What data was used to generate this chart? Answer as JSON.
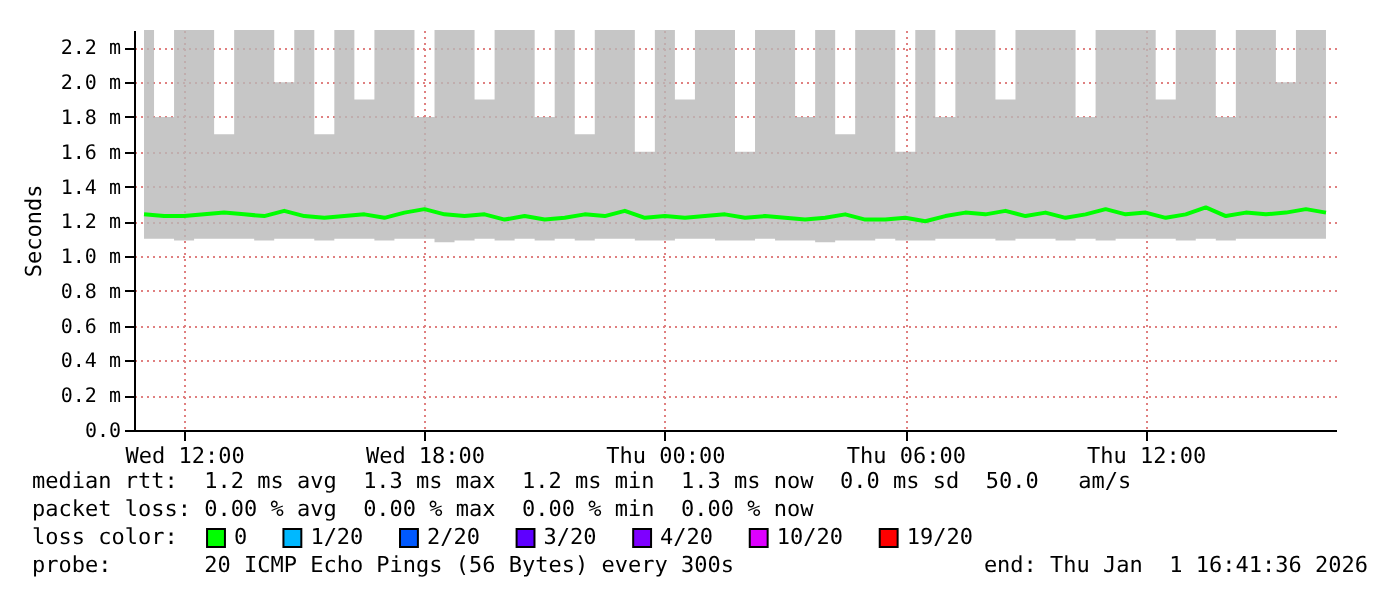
{
  "chart_data": {
    "type": "line",
    "ylabel": "Seconds",
    "x": [
      "2025-12-31T11:00",
      "2025-12-31T11:30",
      "2025-12-31T12:00",
      "2025-12-31T12:30",
      "2025-12-31T13:00",
      "2025-12-31T13:30",
      "2025-12-31T14:00",
      "2025-12-31T14:30",
      "2025-12-31T15:00",
      "2025-12-31T15:30",
      "2025-12-31T16:00",
      "2025-12-31T16:30",
      "2025-12-31T17:00",
      "2025-12-31T17:30",
      "2025-12-31T18:00",
      "2025-12-31T18:30",
      "2025-12-31T19:00",
      "2025-12-31T19:30",
      "2025-12-31T20:00",
      "2025-12-31T20:30",
      "2025-12-31T21:00",
      "2025-12-31T21:30",
      "2025-12-31T22:00",
      "2025-12-31T22:30",
      "2025-12-31T23:00",
      "2025-12-31T23:30",
      "2026-01-01T00:00",
      "2026-01-01T00:30",
      "2026-01-01T01:00",
      "2026-01-01T01:30",
      "2026-01-01T02:00",
      "2026-01-01T02:30",
      "2026-01-01T03:00",
      "2026-01-01T03:30",
      "2026-01-01T04:00",
      "2026-01-01T04:30",
      "2026-01-01T05:00",
      "2026-01-01T05:30",
      "2026-01-01T06:00",
      "2026-01-01T06:30",
      "2026-01-01T07:00",
      "2026-01-01T07:30",
      "2026-01-01T08:00",
      "2026-01-01T08:30",
      "2026-01-01T09:00",
      "2026-01-01T09:30",
      "2026-01-01T10:00",
      "2026-01-01T10:30",
      "2026-01-01T11:00",
      "2026-01-01T11:30",
      "2026-01-01T12:00",
      "2026-01-01T12:30",
      "2026-01-01T13:00",
      "2026-01-01T13:30",
      "2026-01-01T14:00",
      "2026-01-01T14:30",
      "2026-01-01T15:00",
      "2026-01-01T15:30",
      "2026-01-01T16:00",
      "2026-01-01T16:30"
    ],
    "series": [
      {
        "name": "0",
        "color": "#00ff00",
        "values": [
          1.24,
          1.23,
          1.23,
          1.24,
          1.25,
          1.24,
          1.23,
          1.26,
          1.23,
          1.22,
          1.23,
          1.24,
          1.22,
          1.25,
          1.27,
          1.24,
          1.23,
          1.24,
          1.21,
          1.23,
          1.21,
          1.22,
          1.24,
          1.23,
          1.26,
          1.22,
          1.23,
          1.22,
          1.23,
          1.24,
          1.22,
          1.23,
          1.22,
          1.21,
          1.22,
          1.24,
          1.21,
          1.21,
          1.22,
          1.2,
          1.23,
          1.25,
          1.24,
          1.26,
          1.23,
          1.25,
          1.22,
          1.24,
          1.27,
          1.24,
          1.25,
          1.22,
          1.24,
          1.28,
          1.23,
          1.25,
          1.24,
          1.25,
          1.27,
          1.25
        ],
        "lower": [
          1.1,
          1.1,
          1.09,
          1.1,
          1.1,
          1.1,
          1.09,
          1.1,
          1.1,
          1.09,
          1.1,
          1.1,
          1.09,
          1.1,
          1.1,
          1.08,
          1.09,
          1.1,
          1.09,
          1.1,
          1.09,
          1.1,
          1.09,
          1.1,
          1.1,
          1.09,
          1.09,
          1.1,
          1.1,
          1.09,
          1.09,
          1.1,
          1.09,
          1.09,
          1.08,
          1.09,
          1.09,
          1.1,
          1.09,
          1.09,
          1.1,
          1.1,
          1.1,
          1.09,
          1.1,
          1.1,
          1.09,
          1.1,
          1.09,
          1.1,
          1.1,
          1.1,
          1.09,
          1.1,
          1.09,
          1.1,
          1.1,
          1.1,
          1.1,
          1.1
        ],
        "upper": [
          2.3,
          1.8,
          2.3,
          2.3,
          1.7,
          2.3,
          2.3,
          2.0,
          2.3,
          1.7,
          2.3,
          1.9,
          2.3,
          2.3,
          1.8,
          2.3,
          2.3,
          1.9,
          2.3,
          2.3,
          1.8,
          2.3,
          1.7,
          2.3,
          2.3,
          1.6,
          2.3,
          1.9,
          2.3,
          2.3,
          1.6,
          2.3,
          2.3,
          1.8,
          2.3,
          1.7,
          2.3,
          2.3,
          1.6,
          2.3,
          1.8,
          2.3,
          2.3,
          1.9,
          2.3,
          2.3,
          2.3,
          1.8,
          2.3,
          2.3,
          2.3,
          1.9,
          2.3,
          2.3,
          1.8,
          2.3,
          2.3,
          2.0,
          2.3,
          2.3
        ]
      },
      {
        "name": "1/20",
        "color": "#00b8ff",
        "values": [
          null,
          null,
          null,
          null,
          null,
          null,
          null,
          null,
          null,
          null,
          null,
          null,
          null,
          null,
          null,
          null,
          null,
          null,
          null,
          null,
          null,
          null,
          null,
          null,
          null,
          null,
          null,
          null,
          null,
          null,
          null,
          null,
          null,
          null,
          null,
          null,
          null,
          null,
          null,
          null,
          null,
          null,
          null,
          null,
          null,
          null,
          null,
          null,
          null,
          null,
          null,
          null,
          null,
          null,
          null,
          null,
          null,
          null,
          null,
          null
        ]
      },
      {
        "name": "2/20",
        "color": "#0059ff",
        "values": [
          null,
          null,
          null,
          null,
          null,
          null,
          null,
          null,
          null,
          null,
          null,
          null,
          null,
          null,
          null,
          null,
          null,
          null,
          null,
          null,
          null,
          null,
          null,
          null,
          null,
          null,
          null,
          null,
          null,
          null,
          null,
          null,
          null,
          null,
          null,
          null,
          null,
          null,
          null,
          null,
          null,
          null,
          null,
          null,
          null,
          null,
          null,
          null,
          null,
          null,
          null,
          null,
          null,
          null,
          null,
          null,
          null,
          null,
          null,
          null
        ]
      },
      {
        "name": "3/20",
        "color": "#5e00ff",
        "values": [
          null,
          null,
          null,
          null,
          null,
          null,
          null,
          null,
          null,
          null,
          null,
          null,
          null,
          null,
          null,
          null,
          null,
          null,
          null,
          null,
          null,
          null,
          null,
          null,
          null,
          null,
          null,
          null,
          null,
          null,
          null,
          null,
          null,
          null,
          null,
          null,
          null,
          null,
          null,
          null,
          null,
          null,
          null,
          null,
          null,
          null,
          null,
          null,
          null,
          null,
          null,
          null,
          null,
          null,
          null,
          null,
          null,
          null,
          null,
          null
        ]
      },
      {
        "name": "4/20",
        "color": "#7e00ff",
        "values": [
          null,
          null,
          null,
          null,
          null,
          null,
          null,
          null,
          null,
          null,
          null,
          null,
          null,
          null,
          null,
          null,
          null,
          null,
          null,
          null,
          null,
          null,
          null,
          null,
          null,
          null,
          null,
          null,
          null,
          null,
          null,
          null,
          null,
          null,
          null,
          null,
          null,
          null,
          null,
          null,
          null,
          null,
          null,
          null,
          null,
          null,
          null,
          null,
          null,
          null,
          null,
          null,
          null,
          null,
          null,
          null,
          null,
          null,
          null,
          null
        ]
      },
      {
        "name": "10/20",
        "color": "#dd00ff",
        "values": [
          null,
          null,
          null,
          null,
          null,
          null,
          null,
          null,
          null,
          null,
          null,
          null,
          null,
          null,
          null,
          null,
          null,
          null,
          null,
          null,
          null,
          null,
          null,
          null,
          null,
          null,
          null,
          null,
          null,
          null,
          null,
          null,
          null,
          null,
          null,
          null,
          null,
          null,
          null,
          null,
          null,
          null,
          null,
          null,
          null,
          null,
          null,
          null,
          null,
          null,
          null,
          null,
          null,
          null,
          null,
          null,
          null,
          null,
          null,
          null
        ]
      },
      {
        "name": "19/20",
        "color": "#ff0000",
        "values": [
          null,
          null,
          null,
          null,
          null,
          null,
          null,
          null,
          null,
          null,
          null,
          null,
          null,
          null,
          null,
          null,
          null,
          null,
          null,
          null,
          null,
          null,
          null,
          null,
          null,
          null,
          null,
          null,
          null,
          null,
          null,
          null,
          null,
          null,
          null,
          null,
          null,
          null,
          null,
          null,
          null,
          null,
          null,
          null,
          null,
          null,
          null,
          null,
          null,
          null,
          null,
          null,
          null,
          null,
          null,
          null,
          null,
          null,
          null,
          null
        ]
      }
    ],
    "xlim": [
      "2025-12-31T10:45",
      "2026-01-01T16:45"
    ],
    "xticks": [
      {
        "value": "2025-12-31T12:00",
        "label": "Wed 12:00"
      },
      {
        "value": "2025-12-31T18:00",
        "label": "Wed 18:00"
      },
      {
        "value": "2026-01-01T00:00",
        "label": "Thu 00:00"
      },
      {
        "value": "2026-01-01T06:00",
        "label": "Thu 06:00"
      },
      {
        "value": "2026-01-01T12:00",
        "label": "Thu 12:00"
      }
    ],
    "ylim": [
      0,
      2.3
    ],
    "yticks": [
      {
        "value": 0,
        "label": "0.0"
      },
      {
        "value": 0.2,
        "label": "0.2 m"
      },
      {
        "value": 0.4,
        "label": "0.4 m"
      },
      {
        "value": 0.6,
        "label": "0.6 m"
      },
      {
        "value": 0.8,
        "label": "0.8 m"
      },
      {
        "value": 1.0,
        "label": "1.0 m"
      },
      {
        "value": 1.2,
        "label": "1.2 m"
      },
      {
        "value": 1.4,
        "label": "1.4 m"
      },
      {
        "value": 1.6,
        "label": "1.6 m"
      },
      {
        "value": 1.8,
        "label": "1.8 m"
      },
      {
        "value": 2.0,
        "label": "2.0 m"
      },
      {
        "value": 2.2,
        "label": "2.2 m"
      }
    ],
    "grid": true,
    "legend": "bottom",
    "marker": "none",
    "line_style": "solid",
    "annotations": [
      "median rtt:  1.2 ms avg  1.3 ms max  1.2 ms min  1.3 ms now  0.0 ms sd  50.0   am/s",
      "packet loss: 0.00 % avg  0.00 % max  0.00 % min  0.00 % now",
      "loss color:",
      "probe:       20 ICMP Echo Pings (56 Bytes) every 300s",
      "end: Thu Jan  1 16:41:36 2026"
    ]
  }
}
